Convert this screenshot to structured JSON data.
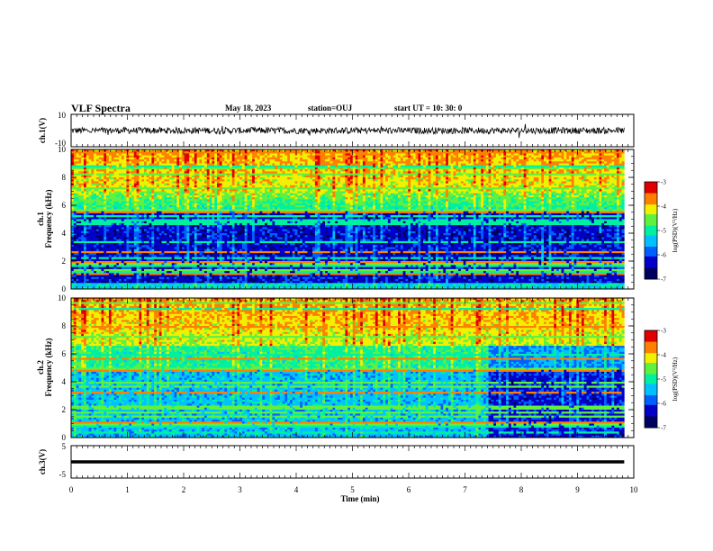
{
  "header": {
    "title": "VLF Spectra",
    "date": "May 18, 2023",
    "station": "station=OUJ",
    "start": "start  UT =   10: 30: 0"
  },
  "colors": {
    "colormap": [
      "#000060",
      "#0000c8",
      "#0060ff",
      "#00c0ff",
      "#00f0a0",
      "#60f040",
      "#f0f000",
      "#ff8000",
      "#e00000",
      "#ffffff"
    ],
    "waveform": "#000000"
  },
  "chart_data": [
    {
      "type": "line",
      "panel": "ch1-waveform",
      "ylabel": "ch.1(V)",
      "ylim": [
        -10,
        10
      ],
      "yticks": [
        "10",
        "-10"
      ],
      "xlim": [
        0,
        10
      ],
      "description_level": 0,
      "noise_amplitude": 2
    },
    {
      "type": "heatmap",
      "panel": "ch1-spectrogram",
      "ylabel_line1": "ch.1",
      "ylabel_line2": "Frequency (kHz)",
      "ylim": [
        0,
        10
      ],
      "yticks": [
        "0",
        "2",
        "4",
        "6",
        "8",
        "10"
      ],
      "xlim": [
        0,
        9.83
      ],
      "colorbar": {
        "label": "log(PSD)(V²/Hz)",
        "range": [
          -7,
          -3
        ],
        "ticks": [
          "-3",
          "-4",
          "-5",
          "-6",
          "-7"
        ]
      }
    },
    {
      "type": "heatmap",
      "panel": "ch2-spectrogram",
      "ylabel_line1": "ch.2",
      "ylabel_line2": "Frequency (kHz)",
      "ylim": [
        0,
        10
      ],
      "yticks": [
        "0",
        "2",
        "4",
        "6",
        "8",
        "10"
      ],
      "xlim": [
        0,
        9.83
      ],
      "colorbar": {
        "label": "log(PSD)(V²/Hz)",
        "range": [
          -7,
          -3
        ],
        "ticks": [
          "-3",
          "-4",
          "-5",
          "-6",
          "-7"
        ]
      }
    },
    {
      "type": "line",
      "panel": "ch3-waveform",
      "ylabel": "ch.3(V)",
      "ylim": [
        -5,
        5
      ],
      "yticks": [
        "5",
        "0",
        "-5"
      ],
      "xlim": [
        0,
        10
      ],
      "level": 0
    }
  ],
  "xaxis": {
    "label": "Time  (min)",
    "ticks": [
      "0",
      "1",
      "2",
      "3",
      "4",
      "5",
      "6",
      "7",
      "8",
      "9",
      "10"
    ]
  }
}
